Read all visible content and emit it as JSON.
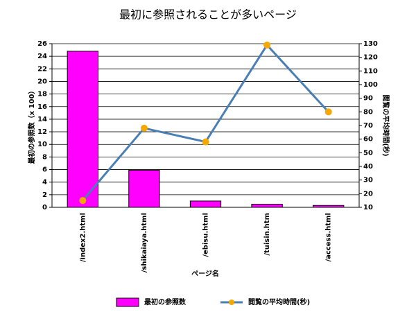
{
  "chart_data": {
    "type": "bar",
    "title": "最初に参照されることが多いページ",
    "x_label": "ページ名",
    "y_label": "最初の参照数（x 100）",
    "y2_label": "閲覧の平均時間(秒)",
    "categories": [
      "/index2.html",
      "/shikaiaya.html",
      "/ebisu.html",
      "/tuisin.htm",
      "/access.html"
    ],
    "series": [
      {
        "name": "最初の参照数",
        "type": "bar",
        "color": "#ff00ff",
        "values": [
          24.8,
          5.9,
          1.0,
          0.5,
          0.3
        ]
      },
      {
        "name": "閲覧の平均時間(秒)",
        "type": "line",
        "axis": "y2",
        "color": "#4a7fb5",
        "marker_color": "#f5a800",
        "values": [
          15,
          68,
          58,
          129,
          80
        ]
      }
    ],
    "ylim": [
      0,
      26
    ],
    "yticks": [
      0,
      2,
      4,
      6,
      8,
      10,
      12,
      14,
      16,
      18,
      20,
      22,
      24,
      26
    ],
    "y2lim": [
      10,
      130
    ],
    "y2ticks": [
      10,
      20,
      30,
      40,
      50,
      60,
      70,
      80,
      90,
      100,
      110,
      120,
      130
    ],
    "grid": true
  }
}
